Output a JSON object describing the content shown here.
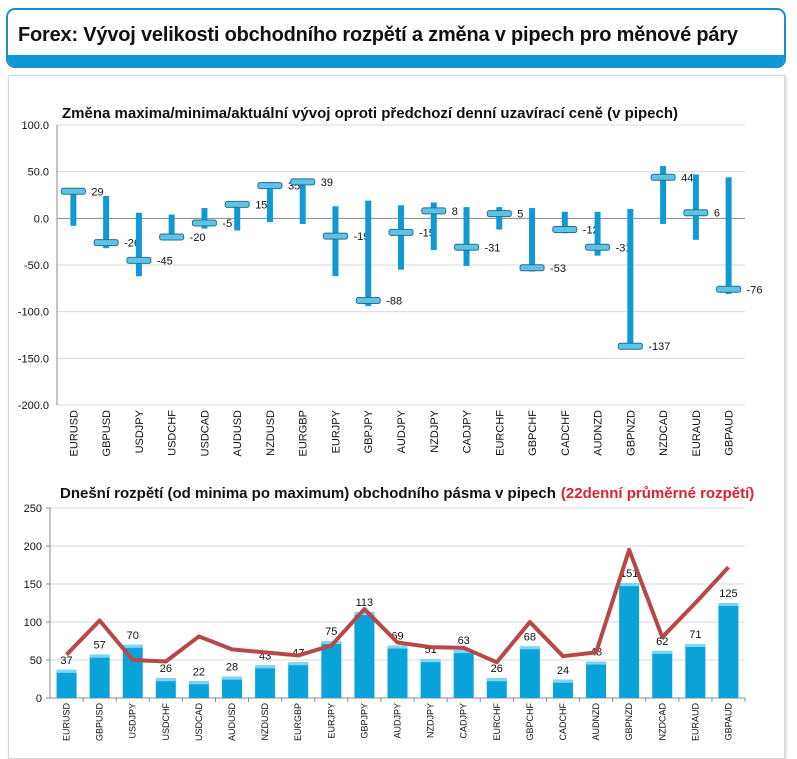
{
  "header": {
    "title": "Forex: Vývoj velikosti obchodního rozpětí a změna v pipech pro měnové páry"
  },
  "chart_data": [
    {
      "type": "bar",
      "subtype": "high-low-current",
      "title": "Změna maxima/minima/aktuální vývoj oproti předchozí denní uzavírací ceně (v pipech)",
      "ylim": [
        -200,
        100
      ],
      "yticks": [
        "100.0",
        "50.0",
        "0.0",
        "-50.0",
        "-100.0",
        "-150.0",
        "-200.0"
      ],
      "categories": [
        "EURUSD",
        "GBPUSD",
        "USDJPY",
        "USDCHF",
        "USDCAD",
        "AUDUSD",
        "NZDUSD",
        "EURGBP",
        "EURJPY",
        "GBPJPY",
        "AUDJPY",
        "NZDJPY",
        "CADJPY",
        "EURCHF",
        "GBPCHF",
        "CADCHF",
        "AUDNZD",
        "GBPNZD",
        "NZDCAD",
        "EURAUD",
        "GBPAUD"
      ],
      "max": [
        31,
        24,
        6,
        4,
        11,
        16,
        39,
        42,
        13,
        19,
        14,
        17,
        12,
        12,
        11,
        7,
        7,
        10,
        56,
        47,
        44
      ],
      "min": [
        -8,
        -32,
        -62,
        -21,
        -11,
        -13,
        -4,
        -6,
        -62,
        -94,
        -55,
        -34,
        -51,
        -12,
        -57,
        -16,
        -40,
        -140,
        -6,
        -23,
        -81
      ],
      "current": [
        29,
        -26,
        -45,
        -20,
        -5,
        15,
        35,
        39,
        -19,
        -88,
        -15,
        8,
        -31,
        5,
        -53,
        -12,
        -31,
        -137,
        44,
        6,
        -76
      ],
      "colors": {
        "bar": "#0f9ad6",
        "marker": "#5cc4e8"
      }
    },
    {
      "type": "bar",
      "title": "Dnešní rozpětí (od minima po maximum) obchodního pásma v pipech",
      "title_highlight": "(22denní průměrné rozpětí)",
      "ylim": [
        0,
        250
      ],
      "yticks": [
        "250",
        "200",
        "150",
        "100",
        "50",
        "0"
      ],
      "categories": [
        "EURUSD",
        "GBPUSD",
        "USDJPY",
        "USDCHF",
        "USDCAD",
        "AUDUSD",
        "NZDUSD",
        "EURGBP",
        "EURJPY",
        "GBPJPY",
        "AUDJPY",
        "NZDJPY",
        "CADJPY",
        "EURCHF",
        "GBPCHF",
        "CADCHF",
        "AUDNZD",
        "GBPNZD",
        "NZDCAD",
        "EURAUD",
        "GBPAUD"
      ],
      "series": [
        {
          "name": "Dnešní rozpětí",
          "type": "bar",
          "values": [
            37,
            57,
            70,
            26,
            22,
            28,
            43,
            47,
            75,
            113,
            69,
            51,
            63,
            26,
            68,
            24,
            48,
            151,
            62,
            71,
            125
          ]
        },
        {
          "name": "22denní průměrné rozpětí",
          "type": "line",
          "values": [
            57,
            102,
            50,
            48,
            81,
            64,
            60,
            56,
            69,
            117,
            73,
            67,
            66,
            47,
            100,
            55,
            60,
            195,
            80,
            125,
            172
          ]
        }
      ],
      "colors": {
        "bar": "#0aa3d9",
        "line": "#b84848",
        "highlight": "#e0202e"
      }
    }
  ]
}
